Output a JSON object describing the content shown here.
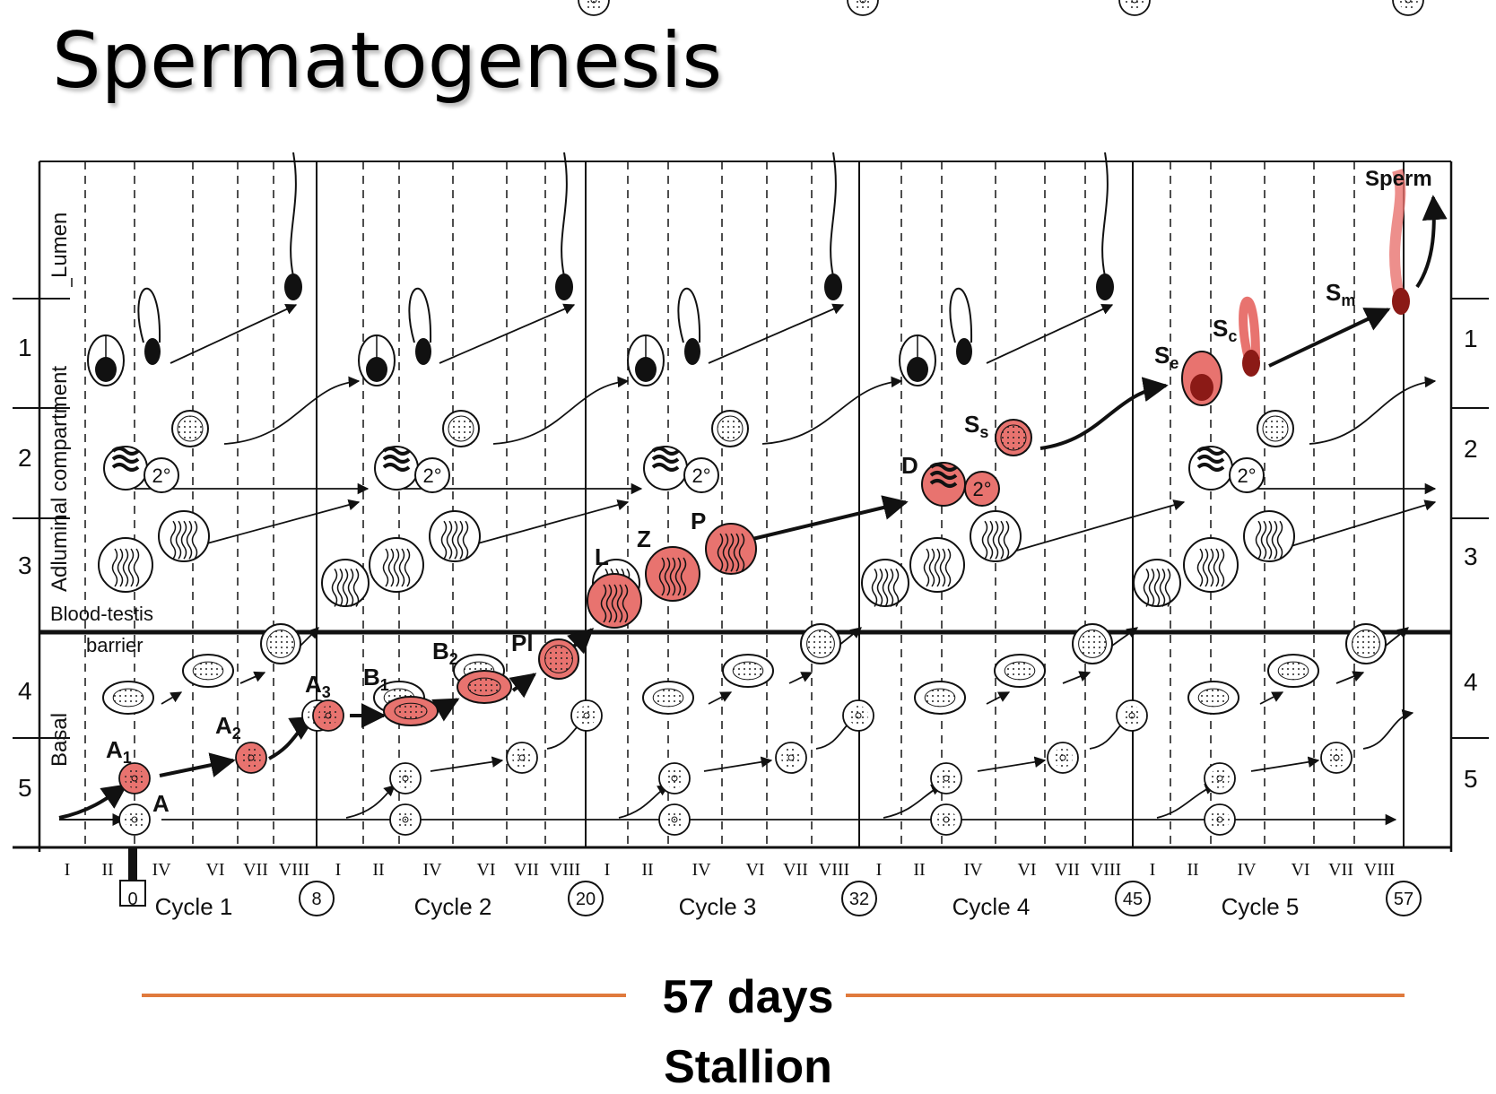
{
  "title": "Spermatogenesis",
  "compartments": {
    "lumen": "Lumen",
    "adluminal": "Adluminal compartment",
    "basal": "Basal",
    "barrier_line1": "Blood-testis",
    "barrier_line2": "barrier"
  },
  "row_numbers": [
    "1",
    "2",
    "3",
    "4",
    "5"
  ],
  "stage_numerals": [
    "I",
    "II",
    "IV",
    "VI",
    "VII",
    "VIII"
  ],
  "cycles": [
    "Cycle 1",
    "Cycle 2",
    "Cycle 3",
    "Cycle 4",
    "Cycle 5"
  ],
  "day_markers": [
    "0",
    "8",
    "20",
    "32",
    "45",
    "57"
  ],
  "cell_labels": {
    "A": "A",
    "A1": "A",
    "A1_sub": "1",
    "A2": "A",
    "A2_sub": "2",
    "A3": "A",
    "A3_sub": "3",
    "B1": "B",
    "B1_sub": "1",
    "B2": "B",
    "B2_sub": "2",
    "Pl": "Pl",
    "L": "L",
    "Z": "Z",
    "P": "P",
    "D": "D",
    "Ss": "S",
    "Ss_sub": "s",
    "Se": "S",
    "Se_sub": "e",
    "Sc": "S",
    "Sc_sub": "c",
    "Sm": "S",
    "Sm_sub": "m",
    "Sperm": "Sperm",
    "secondary": "2°"
  },
  "caption": {
    "days": "57 days",
    "species": "Stallion"
  },
  "colors": {
    "highlight": "#e8736f",
    "highlight_dark": "#8b1a16",
    "rule": "#e07a3c",
    "ink": "#111111"
  }
}
